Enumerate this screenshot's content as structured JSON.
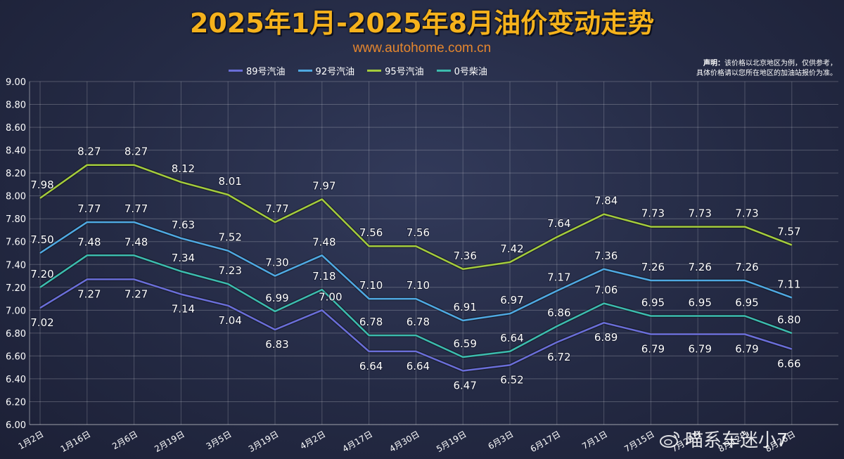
{
  "header": {
    "title": "2025年1月-2025年8月油价变动走势",
    "subtitle": "www.autohome.com.cn"
  },
  "disclaimer": {
    "label": "声明：",
    "line1": "该价格以北京地区为例，仅供参考，",
    "line2": "具体价格请以您所在地区的加油站报价为准。"
  },
  "watermark": {
    "text": "喵系车迷小7",
    "icon": "weibo-icon"
  },
  "colors": {
    "89": "#6a6ed8",
    "92": "#4fa9e2",
    "95": "#a4cc3c",
    "0": "#3cbcae"
  },
  "chart_data": {
    "type": "line",
    "categories": [
      "1月2日",
      "1月16日",
      "2月6日",
      "2月19日",
      "3月5日",
      "3月19日",
      "4月2日",
      "4月17日",
      "4月30日",
      "5月19日",
      "6月3日",
      "6月17日",
      "7月1日",
      "7月15日",
      "7月29日",
      "8月12日",
      "8月26日"
    ],
    "ylim": [
      6.0,
      9.0
    ],
    "yticks": [
      "6.00",
      "6.20",
      "6.40",
      "6.60",
      "6.80",
      "7.00",
      "7.20",
      "7.40",
      "7.60",
      "7.80",
      "8.00",
      "8.20",
      "8.40",
      "8.60",
      "8.80",
      "9.00"
    ],
    "grid": true,
    "legend_position": "top",
    "series": [
      {
        "name": "89号汽油",
        "key": "89",
        "values": [
          7.02,
          7.27,
          7.27,
          7.14,
          7.04,
          6.83,
          7.0,
          6.64,
          6.64,
          6.47,
          6.52,
          6.72,
          6.89,
          6.79,
          6.79,
          6.79,
          6.66
        ]
      },
      {
        "name": "92号汽油",
        "key": "92",
        "values": [
          7.5,
          7.77,
          7.77,
          7.63,
          7.52,
          7.3,
          7.48,
          7.1,
          7.1,
          6.91,
          6.97,
          7.17,
          7.36,
          7.26,
          7.26,
          7.26,
          7.11
        ]
      },
      {
        "name": "95号汽油",
        "key": "95",
        "values": [
          7.98,
          8.27,
          8.27,
          8.12,
          8.01,
          7.77,
          7.97,
          7.56,
          7.56,
          7.36,
          7.42,
          7.64,
          7.84,
          7.73,
          7.73,
          7.73,
          7.57
        ]
      },
      {
        "name": "0号柴油",
        "key": "0",
        "values": [
          7.2,
          7.48,
          7.48,
          7.34,
          7.23,
          6.99,
          7.18,
          6.78,
          6.78,
          6.59,
          6.64,
          6.86,
          7.06,
          6.95,
          6.95,
          6.95,
          6.8
        ]
      }
    ],
    "data_labels": {
      "89": [
        "7.02",
        "7.27",
        "7.27",
        "7.14",
        "7.04",
        "6.83",
        "",
        "6.64",
        "6.64",
        "6.47",
        "6.52",
        "6.72",
        "6.89",
        "6.79",
        "6.79",
        "6.79",
        "6.66"
      ],
      "92": [
        "7.50",
        "7.77",
        "7.77",
        "7.63",
        "7.52",
        "7.30",
        "7.48",
        "7.10",
        "7.10",
        "6.91",
        "6.97",
        "7.17",
        "7.36",
        "7.26",
        "7.26",
        "7.26",
        "7.11"
      ],
      "95": [
        "7.98",
        "8.27",
        "8.27",
        "8.12",
        "8.01",
        "7.77",
        "7.97",
        "7.56",
        "7.56",
        "7.36",
        "7.42",
        "7.64",
        "7.84",
        "7.73",
        "7.73",
        "7.73",
        "7.57"
      ],
      "0": [
        "7.20",
        "7.48",
        "7.48",
        "7.34",
        "7.23",
        "6.99",
        "7.18",
        "6.78",
        "6.78",
        "6.59",
        "6.64",
        "6.86",
        "7.06",
        "6.95",
        "6.95",
        "6.95",
        "6.80"
      ],
      "extra": "7.00"
    }
  }
}
